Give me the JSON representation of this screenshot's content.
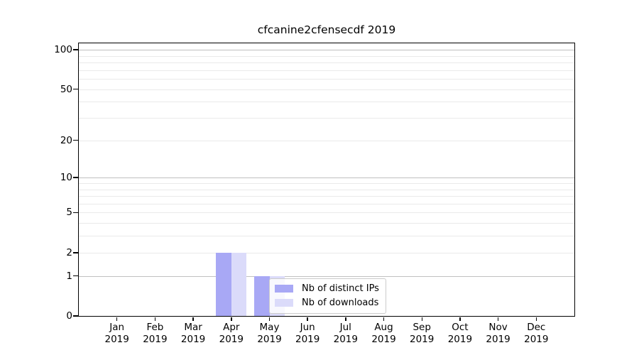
{
  "chart_data": {
    "type": "bar",
    "title": "cfcanine2cfensecdf 2019",
    "categories": [
      "Jan 2019",
      "Feb 2019",
      "Mar 2019",
      "Apr 2019",
      "May 2019",
      "Jun 2019",
      "Jul 2019",
      "Aug 2019",
      "Sep 2019",
      "Oct 2019",
      "Nov 2019",
      "Dec 2019"
    ],
    "series": [
      {
        "name": "Nb of distinct IPs",
        "color": "#a8a8f5",
        "values": [
          0,
          0,
          0,
          2,
          1,
          0,
          0,
          0,
          0,
          0,
          0,
          0
        ]
      },
      {
        "name": "Nb of downloads",
        "color": "#dbdbfa",
        "values": [
          0,
          0,
          0,
          2,
          1,
          0,
          0,
          0,
          0,
          0,
          0,
          0
        ]
      }
    ],
    "yscale": "log1p",
    "ylim": [
      0,
      112
    ],
    "y_tick_labels": [
      "0",
      "1",
      "2",
      "5",
      "10",
      "20",
      "50",
      "100"
    ],
    "y_major_ticks": [
      0,
      1,
      2,
      5,
      10,
      20,
      50,
      100
    ],
    "grid": {
      "orientation": "horizontal",
      "major_values": [
        1,
        10,
        100
      ],
      "minor_values": [
        2,
        3,
        4,
        5,
        6,
        7,
        8,
        9,
        20,
        30,
        40,
        50,
        60,
        70,
        80,
        90
      ]
    },
    "legend_position": "lower-center inside plot",
    "xlabel": "",
    "ylabel": ""
  }
}
